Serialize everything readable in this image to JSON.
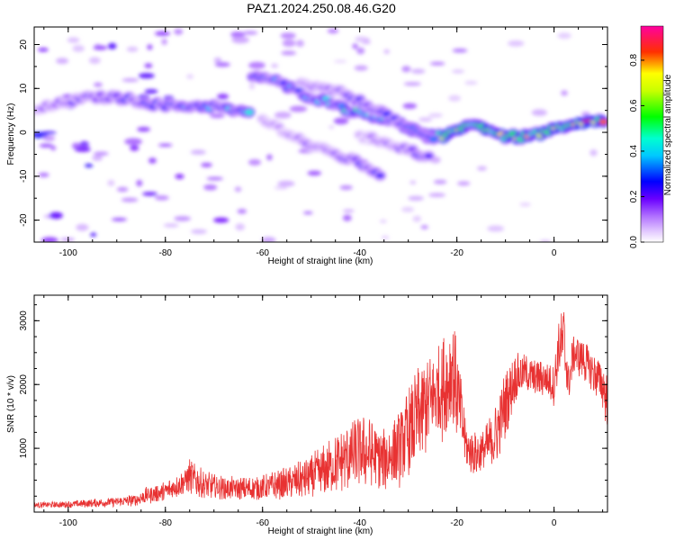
{
  "page": {
    "title": "PAZ1.2024.250.08.46.G20"
  },
  "chart_data": [
    {
      "type": "heatmap",
      "title": "PAZ1.2024.250.08.46.G20",
      "xlabel": "Height of straight line (km)",
      "ylabel": "Frequency (Hz)",
      "xlim": [
        -107,
        11
      ],
      "ylim": [
        -25,
        24
      ],
      "x_ticks": [
        -100,
        -80,
        -60,
        -40,
        -20,
        0
      ],
      "y_ticks": [
        -20,
        -10,
        0,
        10,
        20
      ],
      "colorbar": {
        "label": "Normalized spectral amplitude",
        "range": [
          0,
          0.95
        ],
        "ticks": [
          "0.0",
          "0.2",
          "0.4",
          "0.6",
          "0.8"
        ],
        "colormap": "rainbow (white-lavender to violet, blue, cyan, green, yellow, red, magenta)"
      },
      "ridges": [
        {
          "name": "",
          "points": [
            [
              -107,
              5
            ],
            [
              -100,
              7
            ],
            [
              -95,
              8
            ],
            [
              -90,
              8
            ],
            [
              -85,
              7
            ],
            [
              -80,
              6
            ],
            [
              -75,
              6
            ],
            [
              -70,
              6
            ],
            [
              -66,
              5
            ],
            [
              -62,
              4
            ]
          ],
          "peak_amplitude": 0.45
        },
        {
          "name": "",
          "points": [
            [
              -62,
              13
            ],
            [
              -58,
              12
            ],
            [
              -54,
              10
            ],
            [
              -50,
              8
            ],
            [
              -46,
              7
            ],
            [
              -42,
              5
            ],
            [
              -38,
              4
            ],
            [
              -34,
              3
            ],
            [
              -30,
              1
            ],
            [
              -26,
              -1
            ],
            [
              -22,
              -1
            ],
            [
              -18,
              2
            ],
            [
              -14,
              1
            ],
            [
              -10,
              -1
            ],
            [
              -6,
              -1
            ],
            [
              -2,
              0
            ],
            [
              2,
              1
            ],
            [
              6,
              2
            ],
            [
              11,
              3
            ]
          ],
          "peak_amplitude": 0.95
        },
        {
          "name": "",
          "points": [
            [
              -52,
              11
            ],
            [
              -48,
              10
            ],
            [
              -44,
              9
            ],
            [
              -40,
              7
            ],
            [
              -36,
              5
            ],
            [
              -32,
              2
            ],
            [
              -28,
              0
            ],
            [
              -24,
              -2
            ]
          ],
          "peak_amplitude": 0.4
        },
        {
          "name": "",
          "points": [
            [
              -60,
              3
            ],
            [
              -55,
              0
            ],
            [
              -50,
              -3
            ],
            [
              -45,
              -5
            ],
            [
              -40,
              -7
            ],
            [
              -35,
              -10
            ]
          ],
          "peak_amplitude": 0.3
        },
        {
          "name": "",
          "points": [
            [
              -40,
              -1
            ],
            [
              -35,
              -2
            ],
            [
              -30,
              -4
            ],
            [
              -25,
              -6
            ]
          ],
          "peak_amplitude": 0.3
        }
      ]
    },
    {
      "type": "line",
      "title": "",
      "xlabel": "Height of straight line (km)",
      "ylabel": "SNR (10 * v/v)",
      "xlim": [
        -107,
        11
      ],
      "ylim": [
        0,
        3400
      ],
      "x_ticks": [
        -100,
        -80,
        -60,
        -40,
        -20,
        0
      ],
      "y_ticks": [
        1000,
        2000,
        3000
      ],
      "line_color": "#e83232",
      "series": [
        {
          "name": "",
          "x": [
            -107,
            -100,
            -95,
            -90,
            -86,
            -84,
            -80,
            -76,
            -75,
            -72,
            -68,
            -65,
            -60,
            -55,
            -50,
            -48,
            -45,
            -42,
            -40,
            -38,
            -35,
            -32,
            -30,
            -28,
            -26,
            -24,
            -22,
            -21,
            -20,
            -18,
            -16,
            -14,
            -12,
            -10,
            -8,
            -6,
            -4,
            -2,
            0,
            1,
            2,
            3,
            4,
            6,
            8,
            10,
            11
          ],
          "mean": [
            110,
            120,
            140,
            160,
            190,
            260,
            320,
            480,
            560,
            420,
            380,
            360,
            380,
            450,
            550,
            620,
            750,
            880,
            950,
            920,
            800,
            1000,
            1200,
            1500,
            1700,
            1900,
            2000,
            2300,
            1900,
            1000,
            900,
            1000,
            1200,
            1700,
            2100,
            2200,
            2100,
            2100,
            2000,
            2600,
            2700,
            2000,
            2500,
            2400,
            2200,
            2000,
            1700
          ],
          "spread": [
            40,
            50,
            60,
            70,
            90,
            120,
            150,
            200,
            260,
            200,
            180,
            170,
            180,
            230,
            320,
            360,
            420,
            500,
            520,
            500,
            450,
            550,
            650,
            700,
            750,
            700,
            800,
            800,
            700,
            350,
            300,
            350,
            450,
            500,
            350,
            250,
            300,
            250,
            300,
            400,
            500,
            350,
            300,
            300,
            300,
            350,
            400
          ]
        }
      ]
    }
  ]
}
